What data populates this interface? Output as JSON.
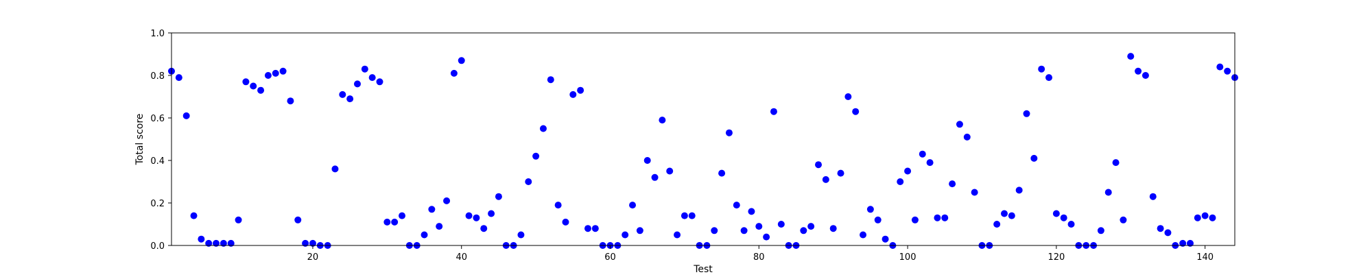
{
  "chart_data": {
    "type": "scatter",
    "title": "",
    "xlabel": "Test",
    "ylabel": "Total score",
    "xlim": [
      1,
      144
    ],
    "ylim": [
      0,
      1.0
    ],
    "x_ticks": [
      20,
      40,
      60,
      80,
      100,
      120,
      140
    ],
    "y_ticks": [
      0.0,
      0.2,
      0.4,
      0.6,
      0.8,
      1.0
    ],
    "x_tick_labels": [
      "20",
      "40",
      "60",
      "80",
      "100",
      "120",
      "140"
    ],
    "y_tick_labels": [
      "0.0",
      "0.2",
      "0.4",
      "0.6",
      "0.8",
      "1.0"
    ],
    "grid": false,
    "point_color": "#0000ff",
    "x": [
      1,
      2,
      3,
      4,
      5,
      6,
      7,
      8,
      9,
      10,
      11,
      12,
      13,
      14,
      15,
      16,
      17,
      18,
      19,
      20,
      21,
      22,
      23,
      24,
      25,
      26,
      27,
      28,
      29,
      30,
      31,
      32,
      33,
      34,
      35,
      36,
      37,
      38,
      39,
      40,
      41,
      42,
      43,
      44,
      45,
      46,
      47,
      48,
      49,
      50,
      51,
      52,
      53,
      54,
      55,
      56,
      57,
      58,
      59,
      60,
      61,
      62,
      63,
      64,
      65,
      66,
      67,
      68,
      69,
      70,
      71,
      72,
      73,
      74,
      75,
      76,
      77,
      78,
      79,
      80,
      81,
      82,
      83,
      84,
      85,
      86,
      87,
      88,
      89,
      90,
      91,
      92,
      93,
      94,
      95,
      96,
      97,
      98,
      99,
      100,
      101,
      102,
      103,
      104,
      105,
      106,
      107,
      108,
      109,
      110,
      111,
      112,
      113,
      114,
      115,
      116,
      117,
      118,
      119,
      120,
      121,
      122,
      123,
      124,
      125,
      126,
      127,
      128,
      129,
      130,
      131,
      132,
      133,
      134,
      135,
      136,
      137,
      138,
      139,
      140,
      141,
      142,
      143,
      144
    ],
    "y": [
      0.82,
      0.79,
      0.61,
      0.14,
      0.03,
      0.01,
      0.01,
      0.01,
      0.01,
      0.12,
      0.77,
      0.75,
      0.73,
      0.8,
      0.81,
      0.82,
      0.68,
      0.12,
      0.01,
      0.01,
      0.0,
      0.0,
      0.36,
      0.71,
      0.69,
      0.76,
      0.83,
      0.79,
      0.77,
      0.11,
      0.11,
      0.14,
      0.0,
      0.0,
      0.05,
      0.17,
      0.09,
      0.21,
      0.81,
      0.87,
      0.14,
      0.13,
      0.08,
      0.15,
      0.23,
      0.0,
      0.0,
      0.05,
      0.3,
      0.42,
      0.55,
      0.78,
      0.19,
      0.11,
      0.71,
      0.73,
      0.08,
      0.08,
      0.0,
      0.0,
      0.0,
      0.05,
      0.19,
      0.07,
      0.4,
      0.32,
      0.59,
      0.35,
      0.05,
      0.14,
      0.14,
      0.0,
      0.0,
      0.07,
      0.34,
      0.53,
      0.19,
      0.07,
      0.16,
      0.09,
      0.04,
      0.63,
      0.1,
      0.0,
      0.0,
      0.07,
      0.09,
      0.38,
      0.31,
      0.08,
      0.34,
      0.7,
      0.63,
      0.05,
      0.17,
      0.12,
      0.03,
      0.0,
      0.3,
      0.35,
      0.12,
      0.43,
      0.39,
      0.13,
      0.13,
      0.29,
      0.57,
      0.51,
      0.25,
      0.0,
      0.0,
      0.1,
      0.15,
      0.14,
      0.26,
      0.62,
      0.41,
      0.83,
      0.79,
      0.15,
      0.13,
      0.1,
      0.0,
      0.0,
      0.0,
      0.07,
      0.25,
      0.39,
      0.12,
      0.89,
      0.82,
      0.8,
      0.23,
      0.08,
      0.06,
      0.0,
      0.01,
      0.01,
      0.13,
      0.14,
      0.13,
      0.84,
      0.82,
      0.79
    ]
  }
}
